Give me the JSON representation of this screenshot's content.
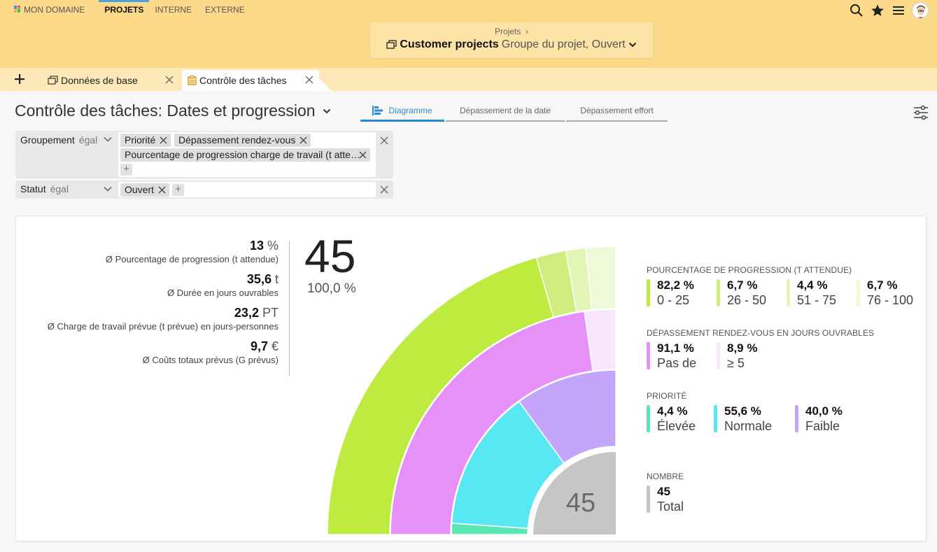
{
  "colors": {
    "topbar": "#fdd98a",
    "accent": "#2a8ad2",
    "lime": "#bdeb3f",
    "lime_light": "#cfee7e",
    "lime_pale": "#e3f4b7",
    "lime_faint": "#eef9d7",
    "magenta": "#e591f7",
    "magenta_pale": "#f9e5fd",
    "cyan": "#57e8f4",
    "teal": "#5be7b4",
    "violet": "#c3a6f9",
    "grey": "#c6c6c6"
  },
  "topnav": {
    "items": [
      "MON DOMAINE",
      "PROJETS",
      "INTERNE",
      "EXTERNE"
    ],
    "icons": [
      "search-icon",
      "star-icon",
      "menu-icon",
      "avatar"
    ]
  },
  "breadcrumb": {
    "parent": "Projets",
    "separator": "›",
    "title": "Customer projects",
    "subtitle": "Groupe du projet, Ouvert"
  },
  "tabs": [
    {
      "label": "Données de base"
    },
    {
      "label": "Contrôle des tâches"
    }
  ],
  "page": {
    "title": "Contrôle des tâches: Dates et progression",
    "view_tabs": [
      "Diagramme",
      "Dépassement de la date",
      "Dépassement effort"
    ]
  },
  "filters": {
    "grouping": {
      "name": "Groupement",
      "operator": "égal",
      "chips": [
        "Priorité",
        "Dépassement rendez-vous",
        "Pourcentage de progression charge de travail (t atte…"
      ],
      "add": "+"
    },
    "status": {
      "name": "Statut",
      "operator": "égal",
      "chips": [
        "Ouvert"
      ],
      "add": "+"
    }
  },
  "stats": [
    {
      "value": "13",
      "unit": "%",
      "label": "Ø Pourcentage de progression (t attendue)"
    },
    {
      "value": "35,6",
      "unit": "t",
      "label": "Ø Durée en jours ouvrables"
    },
    {
      "value": "23,2",
      "unit": "PT",
      "label": "Ø Charge de travail prévue (t prévue) en jours-personnes"
    },
    {
      "value": "9,7",
      "unit": "€",
      "label": "Ø Coûts totaux prévus (G prévus)"
    }
  ],
  "total": {
    "count": "45",
    "percent": "100,0 %"
  },
  "chart_data": {
    "type": "sunburst",
    "center_label": "45",
    "rings": [
      {
        "name": "PRIORITÉ",
        "segments": [
          {
            "label": "Élevée",
            "percent": 4.4,
            "color": "#5be7b4"
          },
          {
            "label": "Normale",
            "percent": 55.6,
            "color": "#57e8f4"
          },
          {
            "label": "Faible",
            "percent": 40.0,
            "color": "#c3a6f9"
          }
        ]
      },
      {
        "name": "DÉPASSEMENT RENDEZ-VOUS EN JOURS OUVRABLES",
        "segments": [
          {
            "label": "Pas de",
            "percent": 91.1,
            "color": "#e591f7"
          },
          {
            "label": "≥ 5",
            "percent": 8.9,
            "color": "#f9e5fd"
          }
        ]
      },
      {
        "name": "POURCENTAGE DE PROGRESSION (T ATTENDUE)",
        "segments": [
          {
            "label": "0 - 25",
            "percent": 82.2,
            "color": "#bdeb3f"
          },
          {
            "label": "26 - 50",
            "percent": 6.7,
            "color": "#cfee7e"
          },
          {
            "label": "51 - 75",
            "percent": 4.4,
            "color": "#e3f4b7"
          },
          {
            "label": "76 - 100",
            "percent": 6.7,
            "color": "#eef9d7"
          }
        ]
      }
    ],
    "legend": [
      {
        "title": "POURCENTAGE DE PROGRESSION (T ATTENDUE)",
        "items": [
          {
            "pct": "82,2 %",
            "cat": "0 - 25",
            "color": "#bdeb3f"
          },
          {
            "pct": "6,7 %",
            "cat": "26 - 50",
            "color": "#cfee7e"
          },
          {
            "pct": "4,4 %",
            "cat": "51 - 75",
            "color": "#e3f4b7"
          },
          {
            "pct": "6,7 %",
            "cat": "76 - 100",
            "color": "#eef9d7"
          }
        ]
      },
      {
        "title": "DÉPASSEMENT RENDEZ-VOUS EN JOURS OUVRABLES",
        "items": [
          {
            "pct": "91,1 %",
            "cat": "Pas de",
            "color": "#e591f7"
          },
          {
            "pct": "8,9 %",
            "cat": "≥ 5",
            "color": "#f9e5fd"
          }
        ]
      },
      {
        "title": "PRIORITÉ",
        "items": [
          {
            "pct": "4,4 %",
            "cat": "Élevée",
            "color": "#5be7b4"
          },
          {
            "pct": "55,6 %",
            "cat": "Normale",
            "color": "#57e8f4"
          },
          {
            "pct": "40,0 %",
            "cat": "Faible",
            "color": "#c3a6f9"
          }
        ]
      },
      {
        "title": "NOMBRE",
        "items": [
          {
            "pct": "45",
            "cat": "Total",
            "color": "#c6c6c6"
          }
        ]
      }
    ]
  }
}
